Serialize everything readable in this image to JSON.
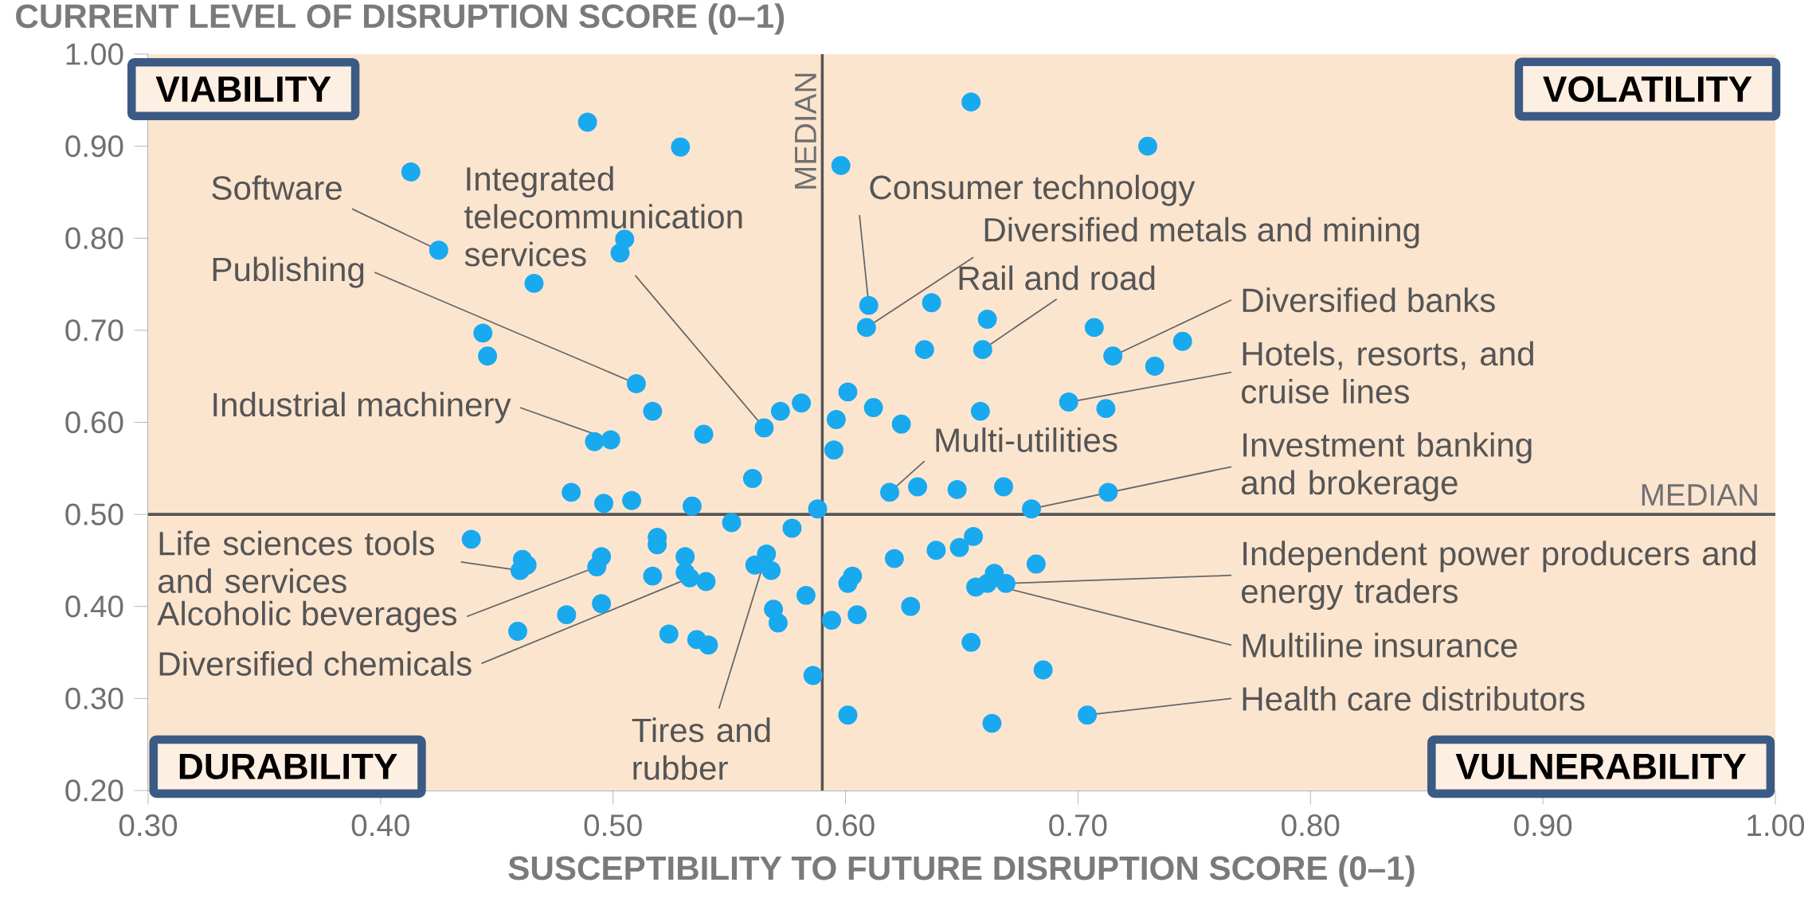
{
  "chart_data": {
    "type": "scatter",
    "xlabel": "SUSCEPTIBILITY TO FUTURE DISRUPTION SCORE (0–1)",
    "ylabel": "CURRENT LEVEL OF DISRUPTION SCORE (0–1)",
    "xlim": [
      0.3,
      1.0
    ],
    "ylim": [
      0.2,
      1.0
    ],
    "xticks": [
      {
        "value": 0.3,
        "label": "0.30"
      },
      {
        "value": 0.4,
        "label": "0.40"
      },
      {
        "value": 0.5,
        "label": "0.50"
      },
      {
        "value": 0.6,
        "label": "0.60"
      },
      {
        "value": 0.7,
        "label": "0.70"
      },
      {
        "value": 0.8,
        "label": "0.80"
      },
      {
        "value": 0.9,
        "label": "0.90"
      },
      {
        "value": 1.0,
        "label": "1.00"
      }
    ],
    "yticks": [
      {
        "value": 0.2,
        "label": "0.20"
      },
      {
        "value": 0.3,
        "label": "0.30"
      },
      {
        "value": 0.4,
        "label": "0.40"
      },
      {
        "value": 0.5,
        "label": "0.50"
      },
      {
        "value": 0.6,
        "label": "0.60"
      },
      {
        "value": 0.7,
        "label": "0.70"
      },
      {
        "value": 0.8,
        "label": "0.80"
      },
      {
        "value": 0.9,
        "label": "0.90"
      },
      {
        "value": 1.0,
        "label": "1.00"
      }
    ],
    "marker": "circle",
    "series": [
      {
        "color": "#19a9ef",
        "x": [
          0.489,
          0.529,
          0.413,
          0.425,
          0.505,
          0.503,
          0.466,
          0.444,
          0.446,
          0.51,
          0.517,
          0.539,
          0.565,
          0.572,
          0.581,
          0.492,
          0.499,
          0.56,
          0.482,
          0.496,
          0.508,
          0.534,
          0.596,
          0.595,
          0.588,
          0.654,
          0.73,
          0.598,
          0.61,
          0.637,
          0.609,
          0.661,
          0.634,
          0.659,
          0.707,
          0.745,
          0.715,
          0.733,
          0.696,
          0.712,
          0.658,
          0.601,
          0.612,
          0.624,
          0.619,
          0.631,
          0.648,
          0.668,
          0.713,
          0.68,
          0.551,
          0.577,
          0.439,
          0.519,
          0.519,
          0.461,
          0.463,
          0.46,
          0.495,
          0.493,
          0.531,
          0.561,
          0.566,
          0.568,
          0.517,
          0.531,
          0.533,
          0.54,
          0.583,
          0.495,
          0.48,
          0.459,
          0.569,
          0.571,
          0.524,
          0.536,
          0.541,
          0.586,
          0.594,
          0.603,
          0.601,
          0.605,
          0.621,
          0.628,
          0.639,
          0.649,
          0.655,
          0.664,
          0.682,
          0.656,
          0.661,
          0.669,
          0.654,
          0.685,
          0.601,
          0.663,
          0.704
        ],
        "values": [
          0.926,
          0.899,
          0.872,
          0.787,
          0.799,
          0.784,
          0.751,
          0.697,
          0.672,
          0.642,
          0.612,
          0.587,
          0.594,
          0.612,
          0.621,
          0.579,
          0.581,
          0.539,
          0.524,
          0.512,
          0.515,
          0.509,
          0.603,
          0.57,
          0.506,
          0.948,
          0.9,
          0.879,
          0.727,
          0.73,
          0.703,
          0.712,
          0.679,
          0.679,
          0.703,
          0.688,
          0.672,
          0.661,
          0.622,
          0.615,
          0.612,
          0.633,
          0.616,
          0.598,
          0.524,
          0.53,
          0.527,
          0.53,
          0.524,
          0.506,
          0.491,
          0.485,
          0.473,
          0.475,
          0.467,
          0.451,
          0.445,
          0.439,
          0.454,
          0.443,
          0.454,
          0.445,
          0.457,
          0.439,
          0.433,
          0.437,
          0.431,
          0.427,
          0.412,
          0.403,
          0.391,
          0.373,
          0.397,
          0.382,
          0.37,
          0.364,
          0.358,
          0.325,
          0.385,
          0.433,
          0.425,
          0.391,
          0.452,
          0.4,
          0.461,
          0.464,
          0.476,
          0.436,
          0.446,
          0.421,
          0.425,
          0.425,
          0.361,
          0.331,
          0.282,
          0.273,
          0.282
        ]
      }
    ],
    "ref_lines": [
      {
        "axis": "x",
        "value": 0.59,
        "label": "MEDIAN",
        "color": "#555555"
      },
      {
        "axis": "y",
        "value": 0.5,
        "label": "MEDIAN",
        "color": "#555555"
      }
    ],
    "bands": [
      {
        "axis": "y",
        "from": 0.2,
        "to": 1.0,
        "color": "#fce5cf"
      }
    ],
    "annotations": [
      "VIABILITY",
      "VOLATILITY",
      "DURABILITY",
      "VULNERABILITY",
      {
        "text": "Software",
        "x": 0.425,
        "y": 0.787
      },
      {
        "text": "Integrated telecommunication services",
        "x": 0.565,
        "y": 0.594
      },
      {
        "text": "Publishing",
        "x": 0.51,
        "y": 0.642
      },
      {
        "text": "Industrial machinery",
        "x": 0.499,
        "y": 0.581
      },
      {
        "text": "Consumer technology",
        "x": 0.61,
        "y": 0.727
      },
      {
        "text": "Diversified metals and mining",
        "x": 0.609,
        "y": 0.703
      },
      {
        "text": "Rail and road",
        "x": 0.659,
        "y": 0.679
      },
      {
        "text": "Diversified banks",
        "x": 0.715,
        "y": 0.672
      },
      {
        "text": "Hotels, resorts, and cruise lines",
        "x": 0.696,
        "y": 0.622
      },
      {
        "text": "Multi-utilities",
        "x": 0.619,
        "y": 0.524
      },
      {
        "text": "Investment banking and brokerage",
        "x": 0.68,
        "y": 0.506
      },
      {
        "text": "Independent power producers and energy traders",
        "x": 0.669,
        "y": 0.425
      },
      {
        "text": "Multiline insurance",
        "x": 0.661,
        "y": 0.425
      },
      {
        "text": "Health care distributors",
        "x": 0.704,
        "y": 0.282
      },
      {
        "text": "Life sciences tools and services",
        "x": 0.46,
        "y": 0.439
      },
      {
        "text": "Alcoholic beverages",
        "x": 0.493,
        "y": 0.443
      },
      {
        "text": "Diversified chemicals",
        "x": 0.533,
        "y": 0.431
      },
      {
        "text": "Tires and rubber",
        "x": 0.566,
        "y": 0.457
      }
    ]
  }
}
